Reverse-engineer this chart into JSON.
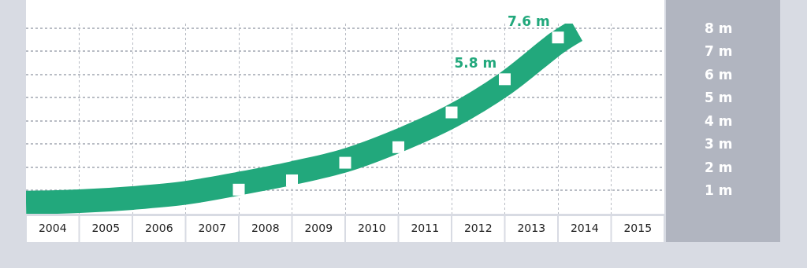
{
  "chart_data": {
    "type": "scatter",
    "x": [
      2008,
      2009,
      2010,
      2011,
      2012,
      2013,
      2014
    ],
    "series": [
      {
        "type": "line",
        "color": "#22a87c",
        "x": [
          2004,
          2005,
          2006,
          2007,
          2008,
          2009,
          2010,
          2011,
          2012,
          2013,
          2014,
          2014.35
        ],
        "values": [
          0.48,
          0.54,
          0.68,
          0.9,
          1.3,
          1.75,
          2.3,
          3.15,
          4.2,
          5.6,
          7.4,
          7.9
        ]
      },
      {
        "color": "#ffffff",
        "marker": "square",
        "values": [
          1.04,
          1.44,
          2.2,
          2.87,
          4.37,
          5.8,
          7.6
        ],
        "value_labels": [
          null,
          null,
          null,
          null,
          null,
          "5.8 m",
          "7.6 m"
        ]
      }
    ],
    "xlim": [
      2004,
      2016
    ],
    "xticks": [
      {
        "value": 2004.5,
        "label": "2004"
      },
      {
        "value": 2005.5,
        "label": "2005"
      },
      {
        "value": 2006.5,
        "label": "2006"
      },
      {
        "value": 2007.5,
        "label": "2007"
      },
      {
        "value": 2008.5,
        "label": "2008"
      },
      {
        "value": 2009.5,
        "label": "2009"
      },
      {
        "value": 2010.5,
        "label": "2010"
      },
      {
        "value": 2011.5,
        "label": "2011"
      },
      {
        "value": 2012.5,
        "label": "2012"
      },
      {
        "value": 2013.5,
        "label": "2013"
      },
      {
        "value": 2014.5,
        "label": "2014"
      },
      {
        "value": 2015.5,
        "label": "2015"
      }
    ],
    "ylim": [
      0,
      8.2
    ],
    "yticks": [
      {
        "value": 1,
        "label": "1 m"
      },
      {
        "value": 2,
        "label": "2 m"
      },
      {
        "value": 3,
        "label": "3 m"
      },
      {
        "value": 4,
        "label": "4 m"
      },
      {
        "value": 5,
        "label": "5 m"
      },
      {
        "value": 6,
        "label": "6 m"
      },
      {
        "value": 7,
        "label": "7 m"
      },
      {
        "value": 8,
        "label": "8 m"
      }
    ],
    "grid": true
  }
}
